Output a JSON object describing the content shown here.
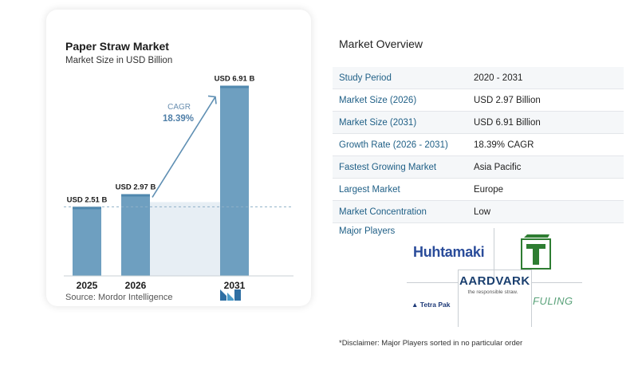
{
  "chart": {
    "title": "Paper Straw Market",
    "subtitle": "Market Size in USD Billion",
    "source": "Source:  Mordor Intelligence"
  },
  "chart_data": {
    "type": "bar",
    "categories": [
      "2025",
      "2026",
      "2031"
    ],
    "values": [
      2.51,
      2.97,
      6.91
    ],
    "value_labels": [
      "USD 2.51 B",
      "USD 2.97 B",
      "USD 6.91 B"
    ],
    "cagr_label": "CAGR",
    "cagr_value": "18.39%",
    "ylim": [
      0,
      7.3
    ],
    "reference_line_value": 2.51,
    "grid": false,
    "colors": {
      "bar": "#6e9fc0",
      "bar_top": "#4f88ae",
      "shade": "#e7eef4",
      "arrow": "#5f8fb3"
    }
  },
  "overview": {
    "title": "Market Overview",
    "rows": [
      {
        "label": "Study Period",
        "value": "2020 - 2031"
      },
      {
        "label": "Market Size (2026)",
        "value": "USD 2.97 Billion"
      },
      {
        "label": "Market Size (2031)",
        "value": "USD 6.91 Billion"
      },
      {
        "label": "Growth Rate (2026 - 2031)",
        "value": "18.39% CAGR"
      },
      {
        "label": "Fastest Growing Market",
        "value": "Asia Pacific"
      },
      {
        "label": "Largest Market",
        "value": "Europe"
      },
      {
        "label": "Market Concentration",
        "value": "Low"
      }
    ]
  },
  "players": {
    "title": "Major Players",
    "names": [
      "Huhtamaki",
      "AARDVARK",
      "the responsible straw.",
      "Tetra Pak",
      "FULING"
    ]
  },
  "disclaimer": "*Disclaimer: Major Players sorted in no particular order"
}
